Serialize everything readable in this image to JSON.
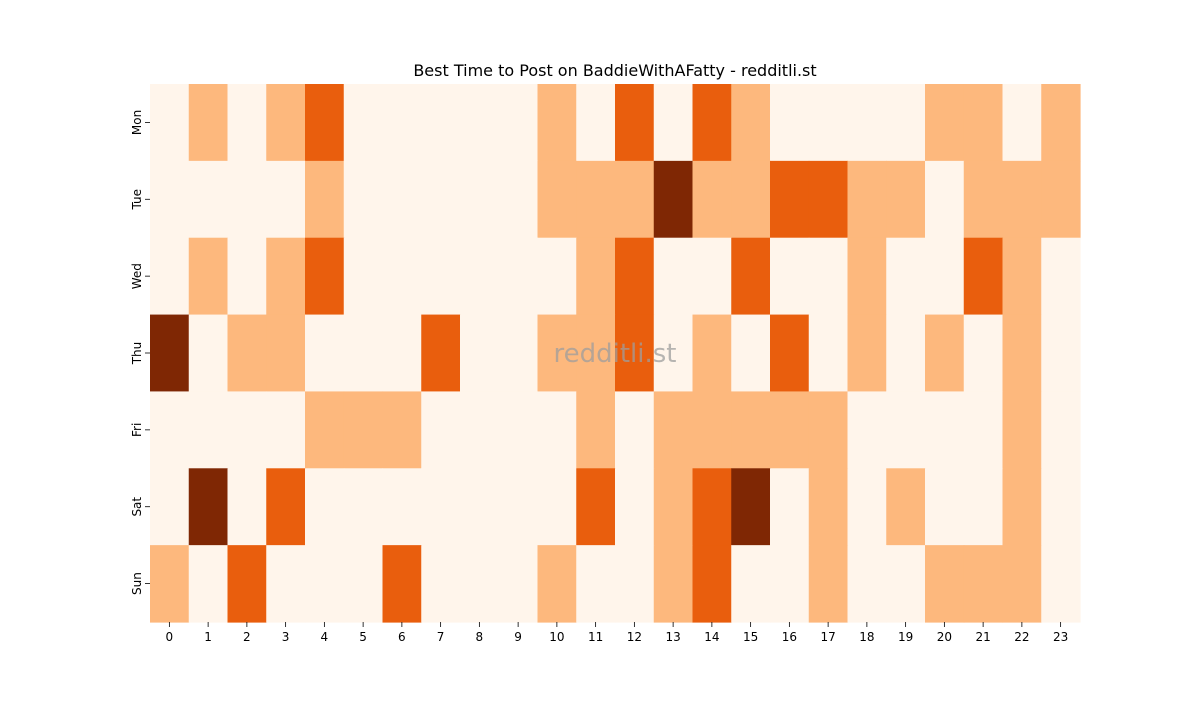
{
  "chart_data": {
    "type": "heatmap",
    "title": "Best Time to Post on BaddieWithAFatty - redditli.st",
    "xlabel": "",
    "ylabel": "",
    "x_categories": [
      "0",
      "1",
      "2",
      "3",
      "4",
      "5",
      "6",
      "7",
      "8",
      "9",
      "10",
      "11",
      "12",
      "13",
      "14",
      "15",
      "16",
      "17",
      "18",
      "19",
      "20",
      "21",
      "22",
      "23"
    ],
    "y_categories": [
      "Mon",
      "Tue",
      "Wed",
      "Thu",
      "Fri",
      "Sat",
      "Sun"
    ],
    "values": [
      [
        0,
        1,
        0,
        1,
        2,
        0,
        0,
        0,
        0,
        0,
        1,
        0,
        2,
        0,
        2,
        1,
        0,
        0,
        0,
        0,
        1,
        1,
        0,
        1
      ],
      [
        0,
        0,
        0,
        0,
        1,
        0,
        0,
        0,
        0,
        0,
        1,
        1,
        1,
        3,
        1,
        1,
        2,
        2,
        1,
        1,
        0,
        1,
        1,
        1
      ],
      [
        0,
        1,
        0,
        1,
        2,
        0,
        0,
        0,
        0,
        0,
        0,
        1,
        2,
        0,
        0,
        2,
        0,
        0,
        1,
        0,
        0,
        2,
        1,
        0
      ],
      [
        3,
        0,
        1,
        1,
        0,
        0,
        0,
        2,
        0,
        0,
        1,
        1,
        2,
        0,
        1,
        0,
        2,
        0,
        1,
        0,
        1,
        0,
        1,
        0
      ],
      [
        0,
        0,
        0,
        0,
        1,
        1,
        1,
        0,
        0,
        0,
        0,
        1,
        0,
        1,
        1,
        1,
        1,
        1,
        0,
        0,
        0,
        0,
        1,
        0
      ],
      [
        0,
        3,
        0,
        2,
        0,
        0,
        0,
        0,
        0,
        0,
        0,
        2,
        0,
        1,
        2,
        3,
        0,
        1,
        0,
        1,
        0,
        0,
        1,
        0
      ],
      [
        1,
        0,
        2,
        0,
        0,
        0,
        2,
        0,
        0,
        0,
        1,
        0,
        0,
        1,
        2,
        0,
        0,
        1,
        0,
        0,
        1,
        1,
        1,
        0
      ]
    ],
    "colorscale": [
      "#fff5eb",
      "#fdb87d",
      "#e95e0d",
      "#7f2704"
    ],
    "grid": false,
    "legend": "none",
    "watermark": "redditli.st"
  }
}
